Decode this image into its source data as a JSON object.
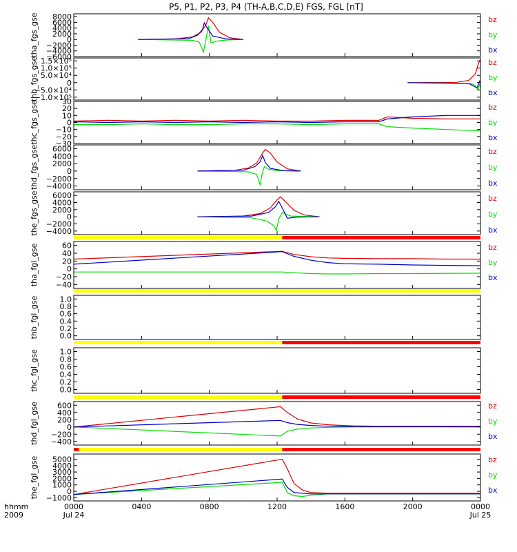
{
  "title": "P5, P1, P2, P3, P4 (TH-A,B,C,D,E) FGS, FGL [nT]",
  "time_axis": {
    "row_labels": [
      "hhmm",
      "2009"
    ],
    "ticks": [
      {
        "line1": "0000",
        "line2": "Jul 24",
        "hour": 0
      },
      {
        "line1": "0400",
        "line2": "",
        "hour": 4
      },
      {
        "line1": "0800",
        "line2": "",
        "hour": 8
      },
      {
        "line1": "1200",
        "line2": "",
        "hour": 12
      },
      {
        "line1": "1600",
        "line2": "",
        "hour": 16
      },
      {
        "line1": "2000",
        "line2": "",
        "hour": 20
      },
      {
        "line1": "0000",
        "line2": "Jul 25",
        "hour": 24
      }
    ]
  },
  "colors": {
    "bx": "#0000cc",
    "by": "#00dd00",
    "bz": "#dd0000",
    "bar_yellow": "#ffff00",
    "bar_red": "#ff0000",
    "axis": "#000000"
  },
  "chart_data": [
    {
      "type": "line",
      "ylabel": "tha_fgs_gse",
      "ylim": [
        -6000,
        9000
      ],
      "yticks": [
        {
          "v": 8000,
          "t": "8000"
        },
        {
          "v": 6000,
          "t": "6000"
        },
        {
          "v": 4000,
          "t": "4000"
        },
        {
          "v": 2000,
          "t": "2000"
        },
        {
          "v": 0,
          "t": "0"
        },
        {
          "v": -2000,
          "t": "−2000"
        },
        {
          "v": -4000,
          "t": "−4000"
        },
        {
          "v": -6000,
          "t": "−6000"
        }
      ],
      "series": [
        {
          "name": "bz",
          "x": [
            3.8,
            6.0,
            7.0,
            7.5,
            7.8,
            7.95,
            8.2,
            8.6,
            9.2,
            10.0
          ],
          "y": [
            0,
            200,
            900,
            2500,
            5200,
            7600,
            6000,
            2500,
            600,
            0
          ]
        },
        {
          "name": "by",
          "x": [
            3.8,
            7.0,
            7.4,
            7.65,
            7.8,
            7.95,
            8.1,
            8.5,
            9.0,
            10.0
          ],
          "y": [
            0,
            -300,
            -900,
            -4400,
            0,
            4800,
            -1200,
            -500,
            -200,
            0
          ]
        },
        {
          "name": "bx",
          "x": [
            3.8,
            6.8,
            7.3,
            7.6,
            7.7,
            7.9,
            8.2,
            9.0,
            10.0
          ],
          "y": [
            0,
            300,
            1500,
            3500,
            5800,
            3800,
            1200,
            200,
            0
          ]
        }
      ]
    },
    {
      "type": "line",
      "ylabel": "thb_fgs_gse",
      "ylim": [
        -120000,
        170000
      ],
      "yticks": [
        {
          "v": 150000,
          "t": "1.5×10⁵"
        },
        {
          "v": 100000,
          "t": "1.0×10⁵"
        },
        {
          "v": 50000,
          "t": "5.0×10⁴"
        },
        {
          "v": 0,
          "t": "0"
        },
        {
          "v": -50000,
          "t": "−5.0×10⁴"
        },
        {
          "v": -100000,
          "t": "−1.0×10⁵"
        }
      ],
      "series": [
        {
          "name": "bz",
          "x": [
            19.7,
            22.6,
            23.3,
            23.7,
            23.85,
            23.95,
            24.0
          ],
          "y": [
            0,
            2000,
            15000,
            60000,
            120000,
            150000,
            140000
          ]
        },
        {
          "name": "by",
          "x": [
            19.7,
            23.4,
            23.7,
            23.85,
            23.95,
            24.0
          ],
          "y": [
            0,
            -6000,
            -20000,
            -50000,
            -10000,
            -40000
          ]
        },
        {
          "name": "bx",
          "x": [
            19.7,
            23.3,
            23.6,
            23.8,
            23.95,
            24.0
          ],
          "y": [
            0,
            -5000,
            -25000,
            -35000,
            10000,
            -5000
          ]
        }
      ]
    },
    {
      "type": "line",
      "ylabel": "thc_fgs_gse",
      "ylim": [
        -30,
        30
      ],
      "yticks": [
        {
          "v": 30,
          "t": "30"
        },
        {
          "v": 20,
          "t": "20"
        },
        {
          "v": 10,
          "t": "10"
        },
        {
          "v": 0,
          "t": "0"
        },
        {
          "v": -10,
          "t": "−10"
        },
        {
          "v": -20,
          "t": "−20"
        },
        {
          "v": -30,
          "t": "−30"
        }
      ],
      "series": [
        {
          "name": "bz",
          "x": [
            0,
            2,
            4,
            6,
            8,
            10,
            12,
            14,
            16,
            18,
            18.5,
            20,
            22,
            24
          ],
          "y": [
            2,
            3,
            2,
            3,
            2,
            3,
            2,
            2,
            3,
            3,
            8,
            6,
            5,
            5
          ]
        },
        {
          "name": "by",
          "x": [
            0,
            2,
            4,
            6,
            8,
            10,
            12,
            14,
            16,
            18,
            18.5,
            20,
            22,
            24
          ],
          "y": [
            -3,
            -3,
            -2,
            -3,
            -3,
            -2,
            -2,
            -3,
            -2,
            -2,
            -6,
            -8,
            -10,
            -12
          ]
        },
        {
          "name": "bx",
          "x": [
            0,
            2,
            4,
            6,
            8,
            10,
            12,
            14,
            16,
            18,
            18.5,
            20,
            22,
            24
          ],
          "y": [
            1,
            0,
            1,
            0,
            1,
            0,
            1,
            0,
            1,
            1,
            5,
            8,
            10,
            10
          ]
        }
      ]
    },
    {
      "type": "line",
      "ylabel": "thd_fgs_gse",
      "ylim": [
        -5000,
        7000
      ],
      "yticks": [
        {
          "v": 6000,
          "t": "6000"
        },
        {
          "v": 4000,
          "t": "4000"
        },
        {
          "v": 2000,
          "t": "2000"
        },
        {
          "v": 0,
          "t": "0"
        },
        {
          "v": -2000,
          "t": "−2000"
        },
        {
          "v": -4000,
          "t": "−4000"
        }
      ],
      "series": [
        {
          "name": "bz",
          "x": [
            7.3,
            9.5,
            10.3,
            10.8,
            11.1,
            11.3,
            11.6,
            12.0,
            12.6,
            13.4
          ],
          "y": [
            0,
            200,
            800,
            2200,
            4500,
            5800,
            4800,
            2400,
            600,
            0
          ]
        },
        {
          "name": "by",
          "x": [
            7.3,
            10.3,
            10.8,
            11.0,
            11.1,
            11.25,
            11.5,
            12.0,
            13.4
          ],
          "y": [
            0,
            -200,
            -900,
            -3800,
            -1000,
            1200,
            500,
            100,
            0
          ]
        },
        {
          "name": "bx",
          "x": [
            7.3,
            10.0,
            10.7,
            11.0,
            11.15,
            11.3,
            11.6,
            12.4,
            13.4
          ],
          "y": [
            0,
            200,
            1200,
            2500,
            4200,
            2300,
            700,
            100,
            0
          ]
        }
      ]
    },
    {
      "type": "line",
      "ylabel": "the_fgs_gse",
      "ylim": [
        -5000,
        7000
      ],
      "yticks": [
        {
          "v": 6000,
          "t": "6000"
        },
        {
          "v": 4000,
          "t": "4000"
        },
        {
          "v": 2000,
          "t": "2000"
        },
        {
          "v": 0,
          "t": "0"
        },
        {
          "v": -2000,
          "t": "−2000"
        },
        {
          "v": -4000,
          "t": "−4000"
        }
      ],
      "series": [
        {
          "name": "bz",
          "x": [
            7.3,
            10.0,
            11.0,
            11.6,
            12.0,
            12.2,
            12.5,
            13.0,
            13.6,
            14.5
          ],
          "y": [
            0,
            200,
            900,
            2500,
            4800,
            5600,
            4200,
            1800,
            500,
            0
          ]
        },
        {
          "name": "by",
          "x": [
            7.3,
            10.5,
            11.4,
            11.8,
            11.95,
            12.1,
            12.3,
            12.8,
            14.5
          ],
          "y": [
            0,
            -300,
            -1200,
            -2500,
            -3800,
            -600,
            1200,
            200,
            0
          ]
        },
        {
          "name": "bx",
          "x": [
            7.3,
            10.5,
            11.5,
            11.9,
            12.1,
            12.3,
            12.6,
            13.2,
            14.5
          ],
          "y": [
            0,
            200,
            1200,
            2800,
            4300,
            2500,
            -400,
            -100,
            0
          ]
        }
      ]
    },
    {
      "type": "line",
      "ylabel": "tha_fgl_gse",
      "ylim": [
        -50,
        70
      ],
      "yticks": [
        {
          "v": 60,
          "t": "60"
        },
        {
          "v": 40,
          "t": "40"
        },
        {
          "v": 20,
          "t": "20"
        },
        {
          "v": 0,
          "t": "0"
        },
        {
          "v": -20,
          "t": "−20"
        },
        {
          "v": -40,
          "t": "−40"
        }
      ],
      "bar": [
        {
          "from": 0,
          "to": 12.3,
          "color": "yellow"
        },
        {
          "from": 12.3,
          "to": 24,
          "color": "red"
        }
      ],
      "series": [
        {
          "name": "bz",
          "x": [
            0,
            12.3,
            13.0,
            14.0,
            15.0,
            16.0,
            18.0,
            20.0,
            22.0,
            24.0
          ],
          "y": [
            25,
            45,
            37,
            31,
            28,
            27,
            26,
            26,
            25,
            25
          ]
        },
        {
          "name": "by",
          "x": [
            0,
            12.3,
            13.0,
            14.0,
            15.0,
            16.0,
            18.0,
            20.0,
            24.0
          ],
          "y": [
            -8,
            -8,
            -10,
            -12,
            -13,
            -13,
            -12,
            -12,
            -11
          ]
        },
        {
          "name": "bx",
          "x": [
            0,
            12.3,
            13.0,
            14.0,
            15.0,
            16.0,
            18.0,
            20.0,
            22.0,
            24.0
          ],
          "y": [
            12,
            44,
            32,
            22,
            16,
            13,
            12,
            10,
            9,
            8
          ]
        }
      ]
    },
    {
      "type": "line",
      "ylabel": "thb_fgl_gse",
      "ylim": [
        -0.1,
        1.1
      ],
      "yticks": [
        {
          "v": 1.0,
          "t": "1.0"
        },
        {
          "v": 0.8,
          "t": "0.8"
        },
        {
          "v": 0.6,
          "t": "0.6"
        },
        {
          "v": 0.4,
          "t": "0.4"
        },
        {
          "v": 0.2,
          "t": "0.2"
        },
        {
          "v": 0.0,
          "t": "0.0"
        }
      ],
      "bar": [
        {
          "from": 0,
          "to": 24,
          "color": "yellow"
        }
      ],
      "series": []
    },
    {
      "type": "line",
      "ylabel": "thc_fgl_gse",
      "ylim": [
        -0.1,
        1.1
      ],
      "yticks": [
        {
          "v": 1.0,
          "t": "1.0"
        },
        {
          "v": 0.8,
          "t": "0.8"
        },
        {
          "v": 0.6,
          "t": "0.6"
        },
        {
          "v": 0.4,
          "t": "0.4"
        },
        {
          "v": 0.2,
          "t": "0.2"
        },
        {
          "v": 0.0,
          "t": "0.0"
        }
      ],
      "bar": [
        {
          "from": 0,
          "to": 12.3,
          "color": "yellow"
        },
        {
          "from": 12.3,
          "to": 24,
          "color": "red"
        }
      ],
      "series": []
    },
    {
      "type": "line",
      "ylabel": "thd_fgl_gse",
      "ylim": [
        -500,
        700
      ],
      "yticks": [
        {
          "v": 600,
          "t": "600"
        },
        {
          "v": 400,
          "t": "400"
        },
        {
          "v": 200,
          "t": "200"
        },
        {
          "v": 0,
          "t": "0"
        },
        {
          "v": -200,
          "t": "−200"
        },
        {
          "v": -400,
          "t": "−400"
        }
      ],
      "bar": [
        {
          "from": 0,
          "to": 12.3,
          "color": "yellow"
        },
        {
          "from": 12.3,
          "to": 24,
          "color": "red"
        }
      ],
      "series": [
        {
          "name": "bz",
          "x": [
            0,
            12.2,
            12.6,
            13.2,
            14.0,
            15.0,
            16.5,
            18.0,
            24.0
          ],
          "y": [
            0,
            560,
            400,
            220,
            110,
            60,
            30,
            20,
            20
          ]
        },
        {
          "name": "by",
          "x": [
            0,
            12.2,
            12.6,
            13.2,
            14.0,
            15.0,
            16.5,
            24.0
          ],
          "y": [
            0,
            -250,
            -120,
            -60,
            -30,
            -10,
            0,
            0
          ]
        },
        {
          "name": "bx",
          "x": [
            0,
            12.2,
            12.6,
            13.2,
            14.0,
            15.0,
            16.5,
            24.0
          ],
          "y": [
            0,
            180,
            120,
            70,
            40,
            20,
            10,
            5
          ]
        }
      ]
    },
    {
      "type": "line",
      "ylabel": "the_fgl_gse",
      "ylim": [
        -1500,
        5800
      ],
      "yticks": [
        {
          "v": 5000,
          "t": "5000"
        },
        {
          "v": 4000,
          "t": "4000"
        },
        {
          "v": 3000,
          "t": "3000"
        },
        {
          "v": 2000,
          "t": "2000"
        },
        {
          "v": 1000,
          "t": "1000"
        },
        {
          "v": 0,
          "t": "0"
        },
        {
          "v": -1000,
          "t": "−1000"
        }
      ],
      "bar": [
        {
          "from": 0,
          "to": 0.3,
          "color": "red"
        },
        {
          "from": 0.3,
          "to": 12.3,
          "color": "yellow"
        },
        {
          "from": 12.3,
          "to": 24,
          "color": "red"
        }
      ],
      "series": [
        {
          "name": "bz",
          "x": [
            0,
            12.3,
            12.6,
            13.0,
            13.5,
            14.0,
            15.0,
            24.0
          ],
          "y": [
            -500,
            5000,
            3500,
            1200,
            200,
            -200,
            -300,
            -300
          ]
        },
        {
          "name": "by",
          "x": [
            0,
            12.3,
            12.6,
            13.0,
            13.5,
            14.0,
            15.0,
            24.0
          ],
          "y": [
            -500,
            1400,
            -200,
            -700,
            -800,
            -600,
            -400,
            -400
          ]
        },
        {
          "name": "bx",
          "x": [
            0,
            12.3,
            12.6,
            13.0,
            14.0,
            15.0,
            24.0
          ],
          "y": [
            -500,
            1900,
            600,
            -200,
            -400,
            -400,
            -400
          ]
        }
      ]
    }
  ],
  "legend": {
    "bz": "bz",
    "by": "by",
    "bx": "bx"
  }
}
